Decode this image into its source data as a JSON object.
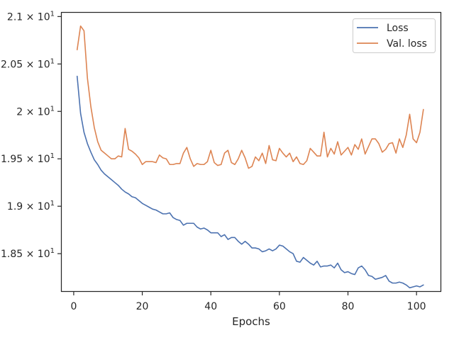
{
  "chart_data": {
    "type": "line",
    "title": "",
    "xlabel": "Epochs",
    "ylabel": "",
    "xlim": [
      -3.5,
      107
    ],
    "ylim": [
      18.105,
      21.04
    ],
    "grid": false,
    "legend_position": "top-right",
    "x_ticks": [
      {
        "value": 0,
        "label": "0"
      },
      {
        "value": 20,
        "label": "20"
      },
      {
        "value": 40,
        "label": "40"
      },
      {
        "value": 60,
        "label": "60"
      },
      {
        "value": 80,
        "label": "80"
      },
      {
        "value": 100,
        "label": "100"
      }
    ],
    "y_ticks": [
      {
        "value": 18.5,
        "base": "1.85",
        "exp": "1"
      },
      {
        "value": 19.0,
        "base": "1.9",
        "exp": "1"
      },
      {
        "value": 19.5,
        "base": "1.95",
        "exp": "1"
      },
      {
        "value": 20.0,
        "base": "2",
        "exp": "1"
      },
      {
        "value": 20.5,
        "base": "2.05",
        "exp": "1"
      },
      {
        "value": 21.0,
        "base": "2.1",
        "exp": "1"
      }
    ],
    "x": [
      1,
      2,
      3,
      4,
      5,
      6,
      7,
      8,
      9,
      10,
      11,
      12,
      13,
      14,
      15,
      16,
      17,
      18,
      19,
      20,
      21,
      22,
      23,
      24,
      25,
      26,
      27,
      28,
      29,
      30,
      31,
      32,
      33,
      34,
      35,
      36,
      37,
      38,
      39,
      40,
      41,
      42,
      43,
      44,
      45,
      46,
      47,
      48,
      49,
      50,
      51,
      52,
      53,
      54,
      55,
      56,
      57,
      58,
      59,
      60,
      61,
      62,
      63,
      64,
      65,
      66,
      67,
      68,
      69,
      70,
      71,
      72,
      73,
      74,
      75,
      76,
      77,
      78,
      79,
      80,
      81,
      82,
      83,
      84,
      85,
      86,
      87,
      88,
      89,
      90,
      91,
      92,
      93,
      94,
      95,
      96,
      97,
      98,
      99,
      100,
      101,
      102
    ],
    "series": [
      {
        "name": "Loss",
        "color": "#4c72b0",
        "values": [
          20.37,
          19.98,
          19.78,
          19.66,
          19.57,
          19.49,
          19.44,
          19.38,
          19.34,
          19.31,
          19.28,
          19.25,
          19.22,
          19.18,
          19.15,
          19.13,
          19.1,
          19.09,
          19.06,
          19.03,
          19.01,
          18.99,
          18.97,
          18.96,
          18.94,
          18.92,
          18.92,
          18.93,
          18.88,
          18.86,
          18.85,
          18.8,
          18.82,
          18.82,
          18.82,
          18.78,
          18.76,
          18.77,
          18.75,
          18.72,
          18.72,
          18.72,
          18.68,
          18.7,
          18.65,
          18.67,
          18.67,
          18.63,
          18.6,
          18.63,
          18.6,
          18.56,
          18.56,
          18.55,
          18.52,
          18.53,
          18.55,
          18.53,
          18.55,
          18.59,
          18.58,
          18.55,
          18.52,
          18.5,
          18.42,
          18.41,
          18.46,
          18.43,
          18.4,
          18.38,
          18.42,
          18.36,
          18.37,
          18.37,
          18.38,
          18.35,
          18.4,
          18.33,
          18.3,
          18.31,
          18.29,
          18.28,
          18.35,
          18.37,
          18.33,
          18.27,
          18.26,
          18.23,
          18.24,
          18.25,
          18.27,
          18.21,
          18.19,
          18.19,
          18.2,
          18.19,
          18.17,
          18.14,
          18.15,
          18.16,
          18.15,
          18.17
        ]
      },
      {
        "name": "Val. loss",
        "color": "#dd8452",
        "values": [
          20.65,
          20.9,
          20.85,
          20.35,
          20.05,
          19.83,
          19.68,
          19.59,
          19.56,
          19.53,
          19.5,
          19.5,
          19.53,
          19.52,
          19.82,
          19.6,
          19.58,
          19.55,
          19.51,
          19.44,
          19.47,
          19.47,
          19.47,
          19.46,
          19.54,
          19.51,
          19.5,
          19.44,
          19.44,
          19.45,
          19.45,
          19.56,
          19.62,
          19.5,
          19.42,
          19.45,
          19.44,
          19.44,
          19.47,
          19.59,
          19.46,
          19.43,
          19.44,
          19.56,
          19.59,
          19.46,
          19.44,
          19.5,
          19.59,
          19.51,
          19.4,
          19.42,
          19.52,
          19.48,
          19.56,
          19.45,
          19.64,
          19.49,
          19.48,
          19.61,
          19.56,
          19.52,
          19.56,
          19.47,
          19.52,
          19.45,
          19.44,
          19.48,
          19.61,
          19.57,
          19.53,
          19.53,
          19.78,
          19.52,
          19.61,
          19.55,
          19.68,
          19.54,
          19.58,
          19.62,
          19.54,
          19.65,
          19.6,
          19.71,
          19.55,
          19.63,
          19.71,
          19.71,
          19.66,
          19.57,
          19.6,
          19.66,
          19.67,
          19.56,
          19.71,
          19.62,
          19.75,
          19.97,
          19.71,
          19.67,
          19.78,
          20.02
        ]
      }
    ]
  }
}
